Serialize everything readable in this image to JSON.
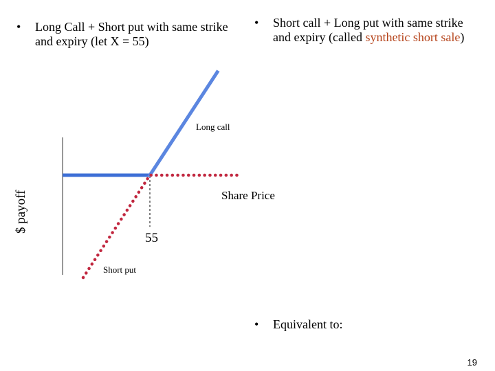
{
  "left_bullet": {
    "marker": "•",
    "text": "Long Call + Short put with same strike and expiry (let X = 55)"
  },
  "right_bullet": {
    "marker": "•",
    "text_before": "Short call + Long put with same strike and expiry (called ",
    "highlight": "synthetic short sale",
    "text_after": ")"
  },
  "equivalent_bullet": {
    "marker": "•",
    "text": "Equivalent to:"
  },
  "diagram": {
    "y_axis_label": "$ payoff",
    "x_axis_label": "Share Price",
    "strike_label": "55",
    "long_call_label": "Long call",
    "short_put_label": "Short put",
    "colors": {
      "blue_line": "#3d6fd6",
      "long_call_line": "#5b86e0",
      "red_dots": "#c1273f",
      "axis": "#777777"
    }
  },
  "page_number": "19"
}
